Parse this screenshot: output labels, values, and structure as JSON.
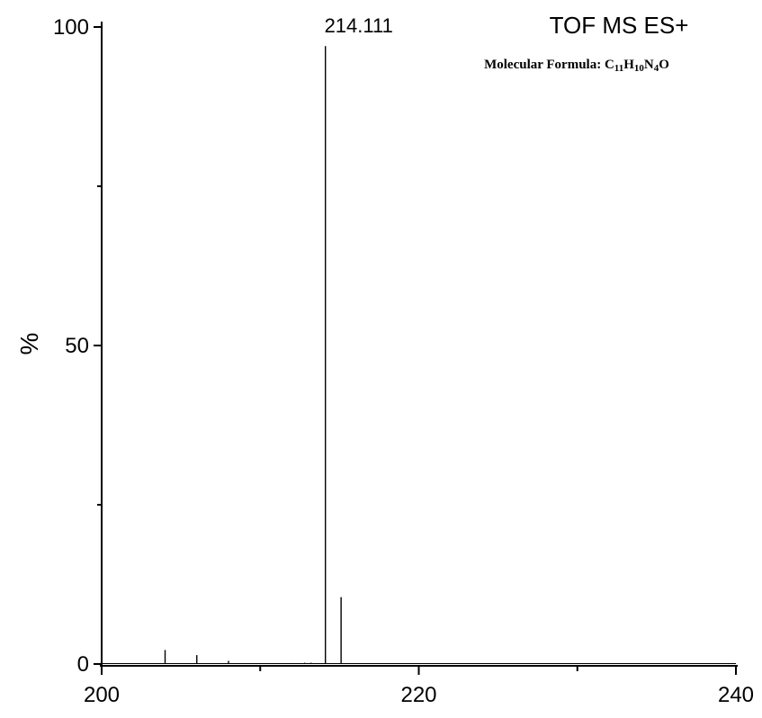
{
  "chart_data": {
    "type": "bar",
    "title": "TOF MS ES+",
    "subtitle": {
      "prefix": "Molecular Formula: ",
      "parts": [
        {
          "text": "C",
          "sub": false
        },
        {
          "text": "11",
          "sub": true
        },
        {
          "text": "H",
          "sub": false
        },
        {
          "text": "10",
          "sub": true
        },
        {
          "text": "N",
          "sub": false
        },
        {
          "text": "4",
          "sub": true
        },
        {
          "text": "O",
          "sub": false
        }
      ]
    },
    "xlabel": "",
    "ylabel": "%",
    "xlim": [
      200,
      240
    ],
    "ylim": [
      0,
      100
    ],
    "x_ticks": [
      200,
      220,
      240
    ],
    "x_minor_ticks": [
      210,
      230
    ],
    "y_ticks": [
      0,
      50,
      100
    ],
    "y_minor_ticks": [
      25,
      75
    ],
    "grid": false,
    "series": [
      {
        "values": [
          {
            "x": 204.0,
            "y": 2.2
          },
          {
            "x": 206.0,
            "y": 1.4
          },
          {
            "x": 208.0,
            "y": 0.5
          },
          {
            "x": 212.0,
            "y": 0.15
          },
          {
            "x": 212.4,
            "y": 0.15
          },
          {
            "x": 212.8,
            "y": 0.2
          },
          {
            "x": 213.2,
            "y": 0.2
          },
          {
            "x": 214.111,
            "y": 97.0
          },
          {
            "x": 215.1,
            "y": 10.5
          }
        ]
      }
    ],
    "annotations": [
      {
        "text": "214.111",
        "x": 214.111
      }
    ]
  }
}
